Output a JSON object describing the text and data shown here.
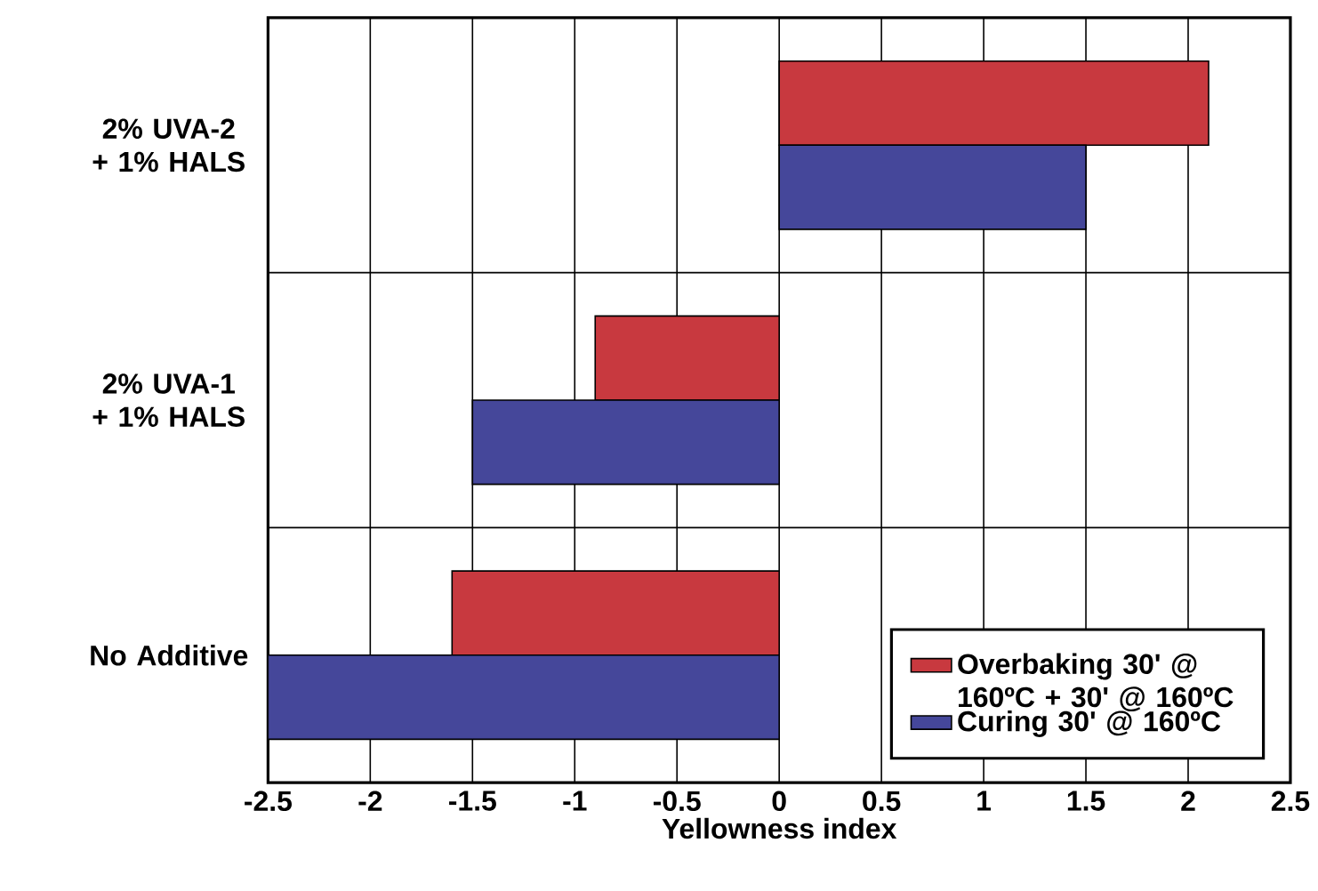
{
  "chart_data": {
    "type": "bar",
    "orientation": "horizontal",
    "xlabel": "Yellowness index",
    "categories": [
      "2% UVA-2 + 1% HALS",
      "2% UVA-1 + 1% HALS",
      "No Additive"
    ],
    "series": [
      {
        "name": "Overbaking 30' @ 160ºC + 30' @ 160ºC",
        "color": "#c8393f",
        "values": [
          2.1,
          -0.9,
          -1.6
        ]
      },
      {
        "name": "Curing 30' @ 160ºC",
        "color": "#45479a",
        "values": [
          1.5,
          -1.5,
          -2.5
        ]
      }
    ],
    "xlim": [
      -2.5,
      2.5
    ],
    "xticks": [
      -2.5,
      -2,
      -1.5,
      -1,
      -0.5,
      0,
      0.5,
      1,
      1.5,
      2,
      2.5
    ],
    "grid": true,
    "legend": "bottom right"
  }
}
